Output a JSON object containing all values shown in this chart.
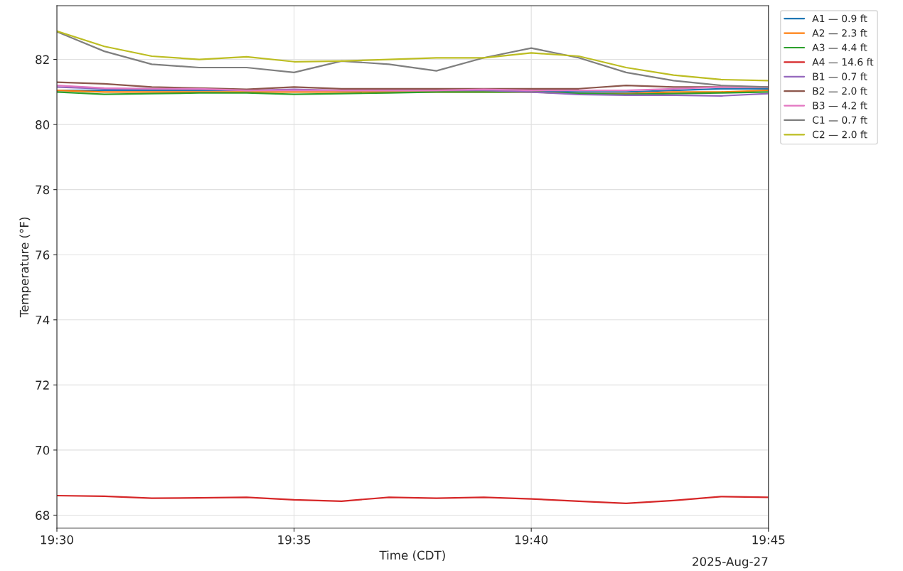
{
  "chart_data": {
    "type": "line",
    "xlabel": "Time (CDT)",
    "ylabel": "Temperature (°F)",
    "x": [
      "2025-08-27T19:30",
      "2025-08-27T19:31",
      "2025-08-27T19:32",
      "2025-08-27T19:33",
      "2025-08-27T19:34",
      "2025-08-27T19:35",
      "2025-08-27T19:36",
      "2025-08-27T19:37",
      "2025-08-27T19:38",
      "2025-08-27T19:39",
      "2025-08-27T19:40",
      "2025-08-27T19:41",
      "2025-08-27T19:42",
      "2025-08-27T19:43",
      "2025-08-27T19:44",
      "2025-08-27T19:45"
    ],
    "series": [
      {
        "name": "A1 — 0.9 ft",
        "color": "#1f77b4",
        "values": [
          81.05,
          81.05,
          81.05,
          81.05,
          81.05,
          81.05,
          81.05,
          81.05,
          81.05,
          81.05,
          81.02,
          81.0,
          81.0,
          81.05,
          81.1,
          81.1
        ]
      },
      {
        "name": "A2 — 2.3 ft",
        "color": "#ff7f0e",
        "values": [
          81.05,
          81.0,
          81.0,
          81.0,
          81.0,
          81.0,
          81.0,
          81.0,
          81.0,
          81.0,
          81.0,
          80.95,
          80.95,
          81.0,
          81.0,
          81.05
        ]
      },
      {
        "name": "A3 — 4.4 ft",
        "color": "#2ca02c",
        "values": [
          81.0,
          80.93,
          80.95,
          80.97,
          80.97,
          80.93,
          80.95,
          80.97,
          81.0,
          81.0,
          81.0,
          80.95,
          80.93,
          80.95,
          80.97,
          81.0
        ]
      },
      {
        "name": "A4 — 14.6 ft",
        "color": "#d62728",
        "values": [
          68.6,
          68.58,
          68.52,
          68.53,
          68.55,
          68.47,
          68.43,
          68.55,
          68.52,
          68.55,
          68.5,
          68.43,
          68.36,
          68.45,
          68.57,
          68.55
        ]
      },
      {
        "name": "B1 — 0.7 ft",
        "color": "#9467bd",
        "values": [
          81.15,
          81.1,
          81.1,
          81.08,
          81.05,
          81.08,
          81.05,
          81.05,
          81.05,
          81.05,
          81.0,
          80.92,
          80.9,
          80.9,
          80.88,
          80.95
        ]
      },
      {
        "name": "B2 — 2.0 ft",
        "color": "#8c564b",
        "values": [
          81.3,
          81.25,
          81.15,
          81.12,
          81.08,
          81.15,
          81.1,
          81.1,
          81.1,
          81.1,
          81.1,
          81.1,
          81.2,
          81.15,
          81.15,
          81.15
        ]
      },
      {
        "name": "B3 — 4.2 ft",
        "color": "#e377c2",
        "values": [
          81.2,
          81.12,
          81.1,
          81.1,
          81.05,
          81.05,
          81.05,
          81.05,
          81.05,
          81.08,
          81.05,
          81.05,
          81.05,
          81.1,
          81.15,
          81.15
        ]
      },
      {
        "name": "C1 — 0.7 ft",
        "color": "#7f7f7f",
        "values": [
          82.85,
          82.25,
          81.85,
          81.75,
          81.75,
          81.6,
          81.95,
          81.85,
          81.65,
          82.05,
          82.35,
          82.05,
          81.6,
          81.35,
          81.2,
          81.15
        ]
      },
      {
        "name": "C2 — 2.0 ft",
        "color": "#bcbd22",
        "values": [
          82.87,
          82.4,
          82.1,
          82.0,
          82.08,
          81.93,
          81.95,
          82.0,
          82.05,
          82.05,
          82.2,
          82.1,
          81.75,
          81.52,
          81.38,
          81.35
        ]
      }
    ],
    "xlim": [
      "2025-08-27T19:30",
      "2025-08-27T19:45"
    ],
    "xticks": [
      {
        "value": "2025-08-27T19:30",
        "label": "19:30"
      },
      {
        "value": "2025-08-27T19:35",
        "label": "19:35"
      },
      {
        "value": "2025-08-27T19:40",
        "label": "19:40"
      },
      {
        "value": "2025-08-27T19:45",
        "label": "19:45"
      }
    ],
    "ylim": [
      67.6,
      83.65
    ],
    "yticks": [
      68,
      70,
      72,
      74,
      76,
      78,
      80,
      82
    ],
    "grid": true,
    "legend": "top right",
    "marker": "none",
    "line_style": "solid",
    "annotations": [
      "2025-Aug-27"
    ]
  }
}
